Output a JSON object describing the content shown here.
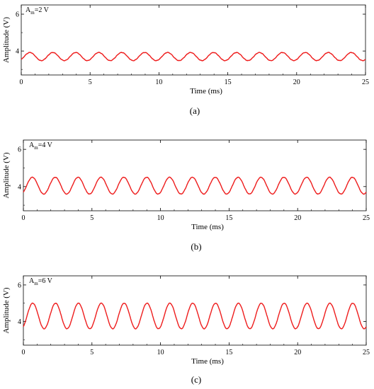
{
  "chart_data": [
    {
      "type": "line",
      "panel": "a",
      "caption": "(a)",
      "annotation": {
        "symbol": "A",
        "subscript": "m",
        "text": "=2 V"
      },
      "xlabel": "Time (ms)",
      "ylabel": "Amplitude (V)",
      "xlim": [
        0,
        25
      ],
      "ylim": [
        2.7,
        6.5
      ],
      "xticks": [
        0,
        5,
        10,
        15,
        20,
        25
      ],
      "yticks": [
        4,
        6
      ],
      "series": [
        {
          "period_ms": 1.667,
          "dc_offset_V": 3.7,
          "amplitude_V": 0.22,
          "phase_rad": -0.8,
          "peak_V": 3.92,
          "trough_V": 3.48
        }
      ]
    },
    {
      "type": "line",
      "panel": "b",
      "caption": "(b)",
      "annotation": {
        "symbol": "A",
        "subscript": "m",
        "text": "=4 V"
      },
      "xlabel": "Time (ms)",
      "ylabel": "Amplitude (V)",
      "xlim": [
        0,
        25
      ],
      "ylim": [
        2.7,
        6.5
      ],
      "xticks": [
        0,
        5,
        10,
        15,
        20,
        25
      ],
      "yticks": [
        4,
        6
      ],
      "series": [
        {
          "period_ms": 1.667,
          "dc_offset_V": 4.05,
          "amplitude_V": 0.45,
          "phase_rad": -0.9,
          "peak_V": 4.5,
          "trough_V": 3.6
        }
      ]
    },
    {
      "type": "line",
      "panel": "c",
      "caption": "(c)",
      "annotation": {
        "symbol": "A",
        "subscript": "m",
        "text": "=6 V"
      },
      "xlabel": "Time (ms)",
      "ylabel": "Amplitude (V)",
      "xlim": [
        0,
        25
      ],
      "ylim": [
        2.7,
        6.5
      ],
      "xticks": [
        0,
        5,
        10,
        15,
        20,
        25
      ],
      "yticks": [
        4,
        6
      ],
      "series": [
        {
          "period_ms": 1.667,
          "dc_offset_V": 4.3,
          "amplitude_V": 0.7,
          "phase_rad": -1.0,
          "peak_V": 5.0,
          "trough_V": 3.6
        }
      ]
    }
  ],
  "colors": {
    "trace": "#ee1c1c",
    "axes": "#000000",
    "background": "#ffffff"
  }
}
